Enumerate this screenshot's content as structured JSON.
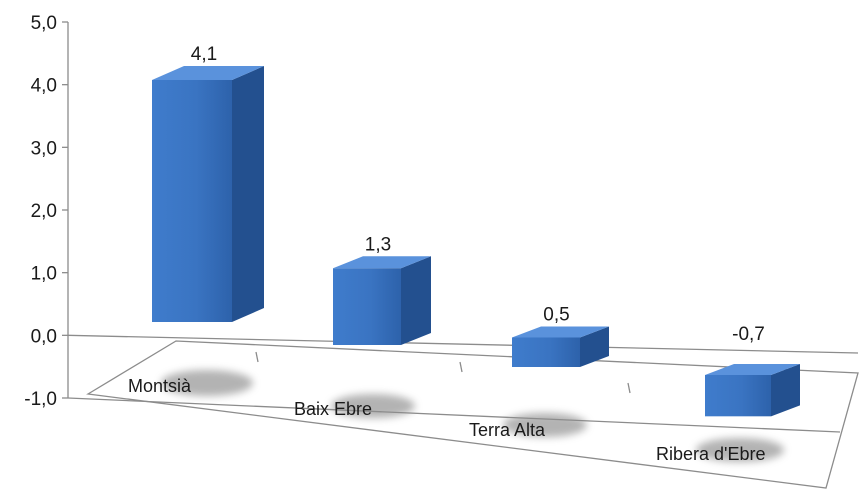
{
  "chart_data": {
    "type": "bar",
    "title": "",
    "xlabel": "",
    "ylabel": "",
    "categories": [
      "Montsià",
      "Baix Ebre",
      "Terra Alta",
      "Ribera d'Ebre"
    ],
    "values": [
      4.1,
      1.3,
      0.5,
      -0.7
    ],
    "value_labels": [
      "4,1",
      "1,3",
      "0,5",
      "-0,7"
    ],
    "ylim": [
      -1.0,
      5.0
    ],
    "y_ticks": [
      5.0,
      4.0,
      3.0,
      2.0,
      1.0,
      0.0,
      -1.0
    ],
    "y_tick_labels": [
      "5,0",
      "4,0",
      "3,0",
      "2,0",
      "1,0",
      "0,0",
      "-1,0"
    ],
    "grid": false,
    "legend": "none",
    "style": "3d-perspective columns",
    "colors": {
      "bar_front": "#3a75c4",
      "bar_top": "#5a92dc",
      "bar_side": "#23508f",
      "axis": "#8c8c8c",
      "shadow": "#9a9a9a"
    }
  }
}
